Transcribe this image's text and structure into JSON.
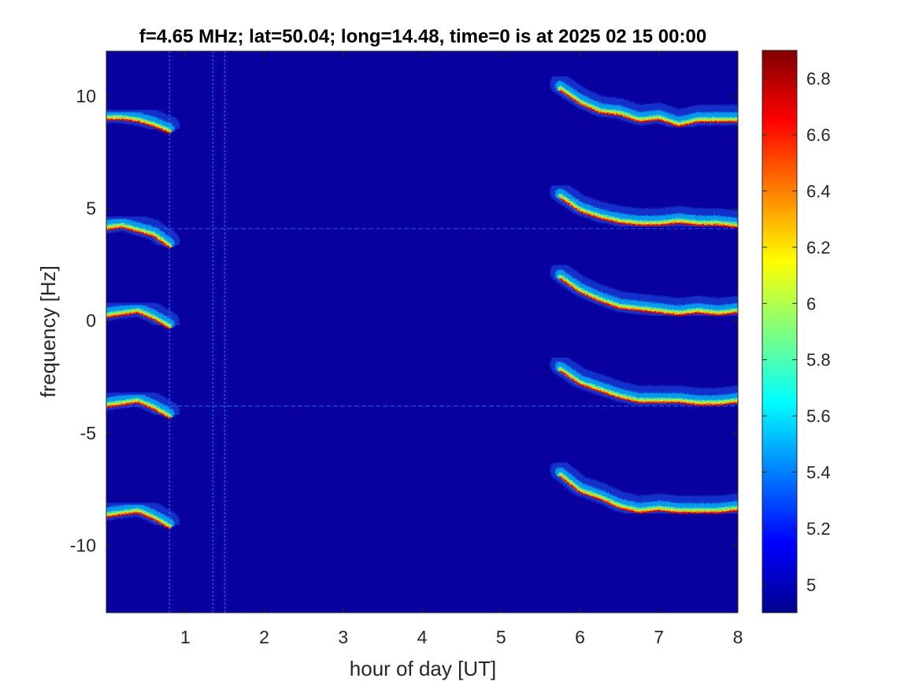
{
  "chart_data": {
    "type": "heatmap",
    "title": "f=4.65 MHz;  lat=50.04; long=14.48, time=0 is at 2025 02 15 00:00",
    "xlabel": "hour of day [UT]",
    "ylabel": "frequency [Hz]",
    "xlim": [
      0,
      8
    ],
    "ylim": [
      -13,
      12
    ],
    "xticks": [
      1,
      2,
      3,
      4,
      5,
      6,
      7,
      8
    ],
    "yticks": [
      10,
      5,
      0,
      -5,
      -10
    ],
    "colorbar": {
      "clim": [
        4.9,
        6.9
      ],
      "ticks": [
        6.8,
        6.6,
        6.4,
        6.2,
        6,
        5.8,
        5.6,
        5.4,
        5.2,
        5
      ],
      "colormap": "jet",
      "background_color": "#08009f"
    },
    "features": {
      "vertical_interference_lines_hours": [
        0.8,
        1.35,
        1.5
      ],
      "horizontal_lines_hz": [
        4.1,
        -3.8
      ],
      "early_traces": [
        {
          "x": [
            0.0,
            0.2,
            0.4,
            0.6,
            0.8
          ],
          "y": [
            9.0,
            9.0,
            8.9,
            8.7,
            8.4
          ]
        },
        {
          "x": [
            0.0,
            0.2,
            0.4,
            0.6,
            0.8
          ],
          "y": [
            4.1,
            4.2,
            4.0,
            3.8,
            3.3
          ]
        },
        {
          "x": [
            0.0,
            0.2,
            0.4,
            0.6,
            0.8
          ],
          "y": [
            0.2,
            0.3,
            0.4,
            0.1,
            -0.3
          ]
        },
        {
          "x": [
            0.0,
            0.2,
            0.4,
            0.6,
            0.8
          ],
          "y": [
            -3.8,
            -3.7,
            -3.6,
            -3.9,
            -4.3
          ]
        },
        {
          "x": [
            0.0,
            0.2,
            0.4,
            0.6,
            0.8
          ],
          "y": [
            -8.7,
            -8.6,
            -8.5,
            -8.8,
            -9.2
          ]
        }
      ],
      "late_traces": [
        {
          "x": [
            5.75,
            6.0,
            6.25,
            6.5,
            6.75,
            7.0,
            7.25,
            7.5,
            7.75,
            8.0
          ],
          "y": [
            10.3,
            9.7,
            9.3,
            9.2,
            8.9,
            9.0,
            8.7,
            8.9,
            8.9,
            8.9
          ]
        },
        {
          "x": [
            5.75,
            6.0,
            6.25,
            6.5,
            6.75,
            7.0,
            7.25,
            7.5,
            7.75,
            8.0
          ],
          "y": [
            5.5,
            4.9,
            4.6,
            4.4,
            4.3,
            4.3,
            4.4,
            4.3,
            4.3,
            4.2
          ]
        },
        {
          "x": [
            5.75,
            6.0,
            6.25,
            6.5,
            6.75,
            7.0,
            7.25,
            7.5,
            7.75,
            8.0
          ],
          "y": [
            1.9,
            1.3,
            0.9,
            0.6,
            0.5,
            0.4,
            0.3,
            0.4,
            0.3,
            0.4
          ]
        },
        {
          "x": [
            5.75,
            6.0,
            6.25,
            6.5,
            6.75,
            7.0,
            7.25,
            7.5,
            7.75,
            8.0
          ],
          "y": [
            -2.2,
            -2.8,
            -3.1,
            -3.4,
            -3.6,
            -3.6,
            -3.6,
            -3.7,
            -3.7,
            -3.6
          ]
        },
        {
          "x": [
            5.75,
            6.0,
            6.25,
            6.5,
            6.75,
            7.0,
            7.25,
            7.5,
            7.75,
            8.0
          ],
          "y": [
            -6.9,
            -7.6,
            -7.9,
            -8.3,
            -8.5,
            -8.4,
            -8.5,
            -8.5,
            -8.5,
            -8.4
          ]
        }
      ]
    }
  }
}
